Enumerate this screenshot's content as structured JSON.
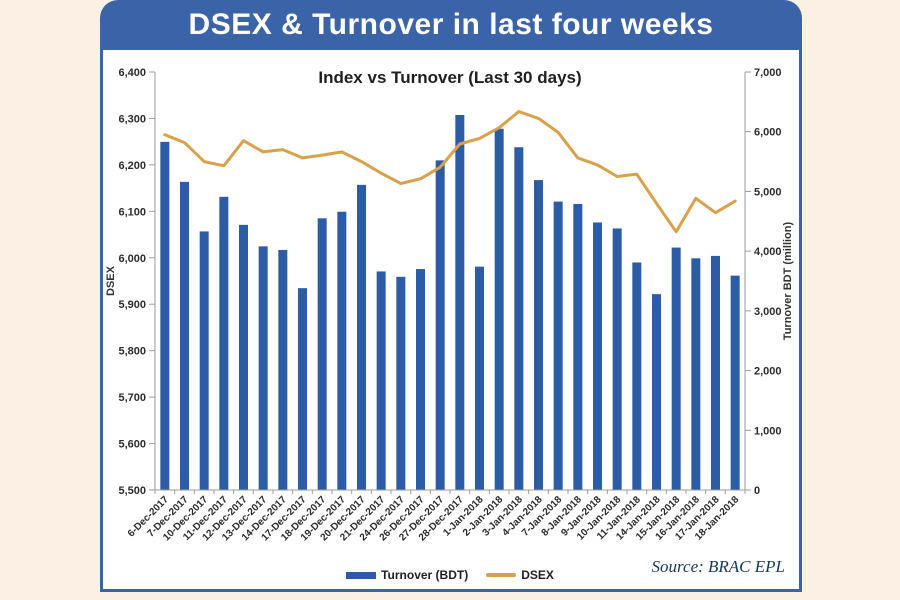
{
  "header": {
    "title": "DSEX & Turnover in last four weeks"
  },
  "footer": {
    "source": "Source: BRAC EPL"
  },
  "colors": {
    "background": "#FBF0E3",
    "banner": "#3A63A8",
    "panel_border": "#3A63A8",
    "bar": "#2D5CA6",
    "line": "#D9A14A",
    "axis": "#9B9B9B",
    "tick_text": "#2b2b2b"
  },
  "chart_data": {
    "type": "bar",
    "subtype": "combo-bar-line",
    "title": "Index vs Turnover (Last 30 days)",
    "grid": false,
    "legend_position": "bottom",
    "categories": [
      "6-Dec-2017",
      "7-Dec-2017",
      "10-Dec-2017",
      "11-Dec-2017",
      "12-Dec-2017",
      "13-Dec-2017",
      "14-Dec-2017",
      "17-Dec-2017",
      "18-Dec-2017",
      "19-Dec-2017",
      "20-Dec-2017",
      "21-Dec-2017",
      "24-Dec-2017",
      "26-Dec-2017",
      "27-Dec-2017",
      "28-Dec-2017",
      "1-Jan-2018",
      "2-Jan-2018",
      "3-Jan-2018",
      "4-Jan-2018",
      "7-Jan-2018",
      "8-Jan-2018",
      "9-Jan-2018",
      "10-Jan-2018",
      "11-Jan-2018",
      "14-Jan-2018",
      "15-Jan-2018",
      "16-Jan-2018",
      "17-Jan-2018",
      "18-Jan-2018"
    ],
    "series": [
      {
        "name": "Turnover (BDT)",
        "type": "bar",
        "axis": "right",
        "color": "#2D5CA6",
        "values": [
          5830,
          5160,
          4330,
          4910,
          4440,
          4080,
          4020,
          3380,
          4550,
          4660,
          5110,
          3660,
          3570,
          3700,
          5520,
          6280,
          3740,
          6050,
          5740,
          5190,
          4830,
          4790,
          4480,
          4380,
          3810,
          3280,
          4060,
          3880,
          3920,
          3590
        ]
      },
      {
        "name": "DSEX",
        "type": "line",
        "axis": "left",
        "color": "#D9A14A",
        "values": [
          6265,
          6248,
          6207,
          6198,
          6252,
          6228,
          6233,
          6215,
          6221,
          6228,
          6207,
          6182,
          6160,
          6170,
          6195,
          6245,
          6257,
          6280,
          6315,
          6300,
          6270,
          6215,
          6200,
          6175,
          6180,
          6117,
          6056,
          6128,
          6097,
          6122
        ]
      }
    ],
    "left_axis": {
      "label": "DSEX",
      "min": 5500,
      "max": 6400,
      "step": 100
    },
    "right_axis": {
      "label": "Turnover BDT (million)",
      "min": 0,
      "max": 7000,
      "step": 1000
    }
  }
}
